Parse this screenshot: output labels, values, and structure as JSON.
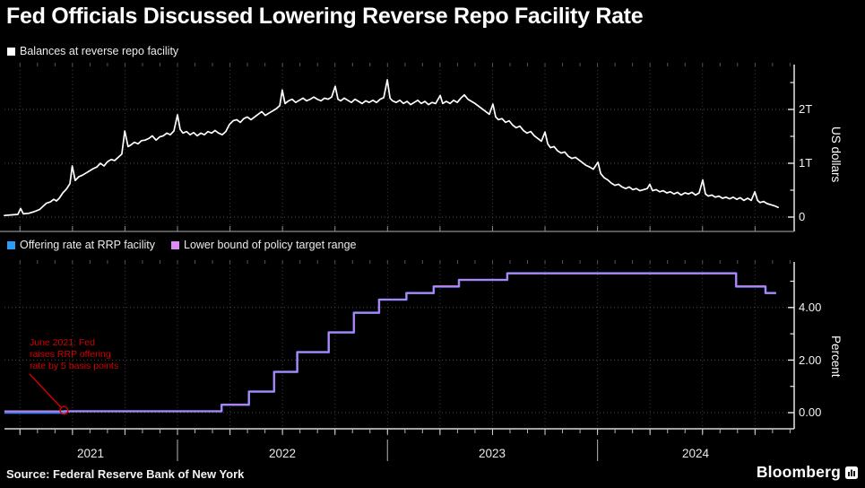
{
  "title": "Fed Officials Discussed Lowering Reverse Repo Facility Rate",
  "panels": {
    "balances": {
      "legend": [
        {
          "label": "Balances at reverse repo facility",
          "color": "#ffffff"
        }
      ],
      "y_axis": {
        "title": "US dollars",
        "tick_labels": [
          "0",
          "1T",
          "2T"
        ]
      }
    },
    "rates": {
      "legend": [
        {
          "label": "Offering rate at RRP facility",
          "color": "#2D9CF4"
        },
        {
          "label": "Lower bound of policy target range",
          "color": "#DC8BF2"
        }
      ],
      "y_axis": {
        "title": "Percent",
        "tick_labels": [
          "0.00",
          "2.00",
          "4.00"
        ]
      },
      "annotation": {
        "lines": [
          "June 2021: Fed",
          "raises RRP offering",
          "rate by 5 basis points"
        ],
        "color": "#d40000"
      }
    }
  },
  "x_axis": {
    "years": [
      "2021",
      "2022",
      "2023",
      "2024"
    ]
  },
  "source": "Source: Federal Reserve Bank of New York",
  "brand": "Bloomberg",
  "chart_data": [
    {
      "type": "line",
      "title": "Balances at reverse repo facility",
      "ylabel": "US dollars",
      "units": "USD trillions",
      "ylim": [
        0,
        2.9
      ],
      "yticks_major": [
        0,
        1,
        2
      ],
      "ytick_labels": [
        "0",
        "1T",
        "2T"
      ],
      "yticks_minor": [
        0.5,
        1.5,
        2.5
      ],
      "x_units": "decimal year",
      "xlim": [
        2021.17,
        2024.93
      ],
      "grid": "dashed quarterly vertical, major horizontal",
      "line_color": "#ffffff",
      "points": [
        [
          2021.176,
          0.03
        ],
        [
          2021.206,
          0.04
        ],
        [
          2021.24,
          0.05
        ],
        [
          2021.253,
          0.16
        ],
        [
          2021.266,
          0.06
        ],
        [
          2021.291,
          0.07
        ],
        [
          2021.317,
          0.1
        ],
        [
          2021.343,
          0.14
        ],
        [
          2021.36,
          0.2
        ],
        [
          2021.377,
          0.26
        ],
        [
          2021.394,
          0.28
        ],
        [
          2021.411,
          0.33
        ],
        [
          2021.424,
          0.3
        ],
        [
          2021.437,
          0.35
        ],
        [
          2021.454,
          0.45
        ],
        [
          2021.471,
          0.52
        ],
        [
          2021.488,
          0.62
        ],
        [
          2021.499,
          0.95
        ],
        [
          2021.513,
          0.68
        ],
        [
          2021.53,
          0.75
        ],
        [
          2021.548,
          0.78
        ],
        [
          2021.565,
          0.82
        ],
        [
          2021.582,
          0.86
        ],
        [
          2021.599,
          0.9
        ],
        [
          2021.616,
          0.93
        ],
        [
          2021.633,
          1.0
        ],
        [
          2021.65,
          0.95
        ],
        [
          2021.667,
          1.03
        ],
        [
          2021.684,
          1.07
        ],
        [
          2021.701,
          1.05
        ],
        [
          2021.718,
          1.11
        ],
        [
          2021.735,
          1.17
        ],
        [
          2021.749,
          1.6
        ],
        [
          2021.765,
          1.31
        ],
        [
          2021.778,
          1.34
        ],
        [
          2021.795,
          1.39
        ],
        [
          2021.812,
          1.36
        ],
        [
          2021.829,
          1.42
        ],
        [
          2021.846,
          1.43
        ],
        [
          2021.863,
          1.46
        ],
        [
          2021.88,
          1.51
        ],
        [
          2021.898,
          1.43
        ],
        [
          2021.915,
          1.49
        ],
        [
          2021.932,
          1.51
        ],
        [
          2021.949,
          1.56
        ],
        [
          2021.966,
          1.53
        ],
        [
          2021.983,
          1.6
        ],
        [
          2022.0,
          1.9
        ],
        [
          2022.013,
          1.63
        ],
        [
          2022.026,
          1.56
        ],
        [
          2022.043,
          1.59
        ],
        [
          2022.06,
          1.53
        ],
        [
          2022.077,
          1.57
        ],
        [
          2022.094,
          1.51
        ],
        [
          2022.111,
          1.56
        ],
        [
          2022.128,
          1.53
        ],
        [
          2022.145,
          1.59
        ],
        [
          2022.162,
          1.56
        ],
        [
          2022.179,
          1.61
        ],
        [
          2022.196,
          1.56
        ],
        [
          2022.213,
          1.53
        ],
        [
          2022.23,
          1.59
        ],
        [
          2022.247,
          1.72
        ],
        [
          2022.265,
          1.79
        ],
        [
          2022.282,
          1.81
        ],
        [
          2022.299,
          1.76
        ],
        [
          2022.316,
          1.83
        ],
        [
          2022.333,
          1.86
        ],
        [
          2022.35,
          1.81
        ],
        [
          2022.367,
          1.86
        ],
        [
          2022.384,
          1.91
        ],
        [
          2022.401,
          1.96
        ],
        [
          2022.418,
          1.89
        ],
        [
          2022.435,
          1.93
        ],
        [
          2022.452,
          1.97
        ],
        [
          2022.469,
          2.01
        ],
        [
          2022.487,
          2.07
        ],
        [
          2022.499,
          2.36
        ],
        [
          2022.512,
          2.11
        ],
        [
          2022.529,
          2.16
        ],
        [
          2022.546,
          2.19
        ],
        [
          2022.563,
          2.13
        ],
        [
          2022.58,
          2.17
        ],
        [
          2022.598,
          2.21
        ],
        [
          2022.615,
          2.16
        ],
        [
          2022.632,
          2.19
        ],
        [
          2022.649,
          2.23
        ],
        [
          2022.666,
          2.19
        ],
        [
          2022.683,
          2.16
        ],
        [
          2022.7,
          2.21
        ],
        [
          2022.717,
          2.19
        ],
        [
          2022.734,
          2.23
        ],
        [
          2022.751,
          2.43
        ],
        [
          2022.764,
          2.19
        ],
        [
          2022.777,
          2.16
        ],
        [
          2022.794,
          2.21
        ],
        [
          2022.811,
          2.17
        ],
        [
          2022.828,
          2.13
        ],
        [
          2022.845,
          2.19
        ],
        [
          2022.862,
          2.15
        ],
        [
          2022.879,
          2.11
        ],
        [
          2022.896,
          2.16
        ],
        [
          2022.913,
          2.13
        ],
        [
          2022.93,
          2.17
        ],
        [
          2022.948,
          2.13
        ],
        [
          2022.965,
          2.19
        ],
        [
          2022.982,
          2.22
        ],
        [
          2022.999,
          2.55
        ],
        [
          2023.012,
          2.21
        ],
        [
          2023.024,
          2.16
        ],
        [
          2023.041,
          2.13
        ],
        [
          2023.059,
          2.17
        ],
        [
          2023.076,
          2.11
        ],
        [
          2023.093,
          2.15
        ],
        [
          2023.11,
          2.09
        ],
        [
          2023.127,
          2.13
        ],
        [
          2023.144,
          2.17
        ],
        [
          2023.161,
          2.11
        ],
        [
          2023.178,
          2.15
        ],
        [
          2023.195,
          2.09
        ],
        [
          2023.212,
          2.13
        ],
        [
          2023.229,
          2.11
        ],
        [
          2023.251,
          2.26
        ],
        [
          2023.263,
          2.11
        ],
        [
          2023.28,
          2.15
        ],
        [
          2023.298,
          2.11
        ],
        [
          2023.315,
          2.17
        ],
        [
          2023.332,
          2.13
        ],
        [
          2023.349,
          2.21
        ],
        [
          2023.366,
          2.27
        ],
        [
          2023.383,
          2.19
        ],
        [
          2023.4,
          2.15
        ],
        [
          2023.417,
          2.11
        ],
        [
          2023.434,
          2.06
        ],
        [
          2023.451,
          2.01
        ],
        [
          2023.468,
          1.96
        ],
        [
          2023.485,
          1.91
        ],
        [
          2023.502,
          2.1
        ],
        [
          2023.515,
          1.86
        ],
        [
          2023.528,
          1.81
        ],
        [
          2023.545,
          1.83
        ],
        [
          2023.562,
          1.76
        ],
        [
          2023.579,
          1.79
        ],
        [
          2023.596,
          1.71
        ],
        [
          2023.613,
          1.66
        ],
        [
          2023.63,
          1.69
        ],
        [
          2023.647,
          1.61
        ],
        [
          2023.664,
          1.56
        ],
        [
          2023.682,
          1.59
        ],
        [
          2023.699,
          1.51
        ],
        [
          2023.716,
          1.46
        ],
        [
          2023.733,
          1.41
        ],
        [
          2023.75,
          1.58
        ],
        [
          2023.763,
          1.36
        ],
        [
          2023.776,
          1.29
        ],
        [
          2023.793,
          1.31
        ],
        [
          2023.81,
          1.23
        ],
        [
          2023.827,
          1.19
        ],
        [
          2023.844,
          1.21
        ],
        [
          2023.861,
          1.13
        ],
        [
          2023.878,
          1.09
        ],
        [
          2023.895,
          1.11
        ],
        [
          2023.912,
          1.06
        ],
        [
          2023.929,
          1.01
        ],
        [
          2023.946,
          0.96
        ],
        [
          2023.963,
          0.93
        ],
        [
          2023.98,
          0.89
        ],
        [
          2024.002,
          1.02
        ],
        [
          2024.015,
          0.81
        ],
        [
          2024.032,
          0.73
        ],
        [
          2024.049,
          0.69
        ],
        [
          2024.066,
          0.63
        ],
        [
          2024.083,
          0.59
        ],
        [
          2024.1,
          0.61
        ],
        [
          2024.117,
          0.56
        ],
        [
          2024.134,
          0.53
        ],
        [
          2024.151,
          0.56
        ],
        [
          2024.168,
          0.51
        ],
        [
          2024.185,
          0.53
        ],
        [
          2024.202,
          0.49
        ],
        [
          2024.219,
          0.51
        ],
        [
          2024.237,
          0.53
        ],
        [
          2024.249,
          0.61
        ],
        [
          2024.262,
          0.49
        ],
        [
          2024.279,
          0.51
        ],
        [
          2024.296,
          0.47
        ],
        [
          2024.313,
          0.49
        ],
        [
          2024.33,
          0.45
        ],
        [
          2024.347,
          0.47
        ],
        [
          2024.364,
          0.43
        ],
        [
          2024.381,
          0.46
        ],
        [
          2024.398,
          0.41
        ],
        [
          2024.416,
          0.45
        ],
        [
          2024.433,
          0.43
        ],
        [
          2024.45,
          0.46
        ],
        [
          2024.467,
          0.41
        ],
        [
          2024.484,
          0.45
        ],
        [
          2024.501,
          0.69
        ],
        [
          2024.514,
          0.43
        ],
        [
          2024.527,
          0.39
        ],
        [
          2024.544,
          0.41
        ],
        [
          2024.561,
          0.37
        ],
        [
          2024.578,
          0.39
        ],
        [
          2024.595,
          0.35
        ],
        [
          2024.612,
          0.37
        ],
        [
          2024.629,
          0.34
        ],
        [
          2024.646,
          0.37
        ],
        [
          2024.663,
          0.33
        ],
        [
          2024.68,
          0.36
        ],
        [
          2024.697,
          0.31
        ],
        [
          2024.715,
          0.35
        ],
        [
          2024.732,
          0.31
        ],
        [
          2024.749,
          0.47
        ],
        [
          2024.762,
          0.31
        ],
        [
          2024.774,
          0.27
        ],
        [
          2024.791,
          0.29
        ],
        [
          2024.808,
          0.25
        ],
        [
          2024.825,
          0.23
        ],
        [
          2024.842,
          0.21
        ],
        [
          2024.86,
          0.18
        ]
      ]
    },
    {
      "type": "step-line",
      "title": "Policy rates",
      "ylabel": "Percent",
      "units": "percent",
      "ylim": [
        0,
        5.8
      ],
      "yticks_major": [
        0,
        2,
        4
      ],
      "ytick_labels": [
        "0.00",
        "2.00",
        "4.00"
      ],
      "yticks_minor": [
        1,
        3,
        5
      ],
      "x_units": "decimal year",
      "xlim": [
        2021.17,
        2024.93
      ],
      "x_end": 2024.85,
      "series": [
        {
          "name": "Offering rate at RRP facility",
          "color": "#3F7DF0",
          "steps": [
            [
              2021.176,
              0.0
            ],
            [
              2021.46,
              0.05
            ],
            [
              2022.21,
              0.3
            ],
            [
              2022.34,
              0.8
            ],
            [
              2022.46,
              1.55
            ],
            [
              2022.57,
              2.3
            ],
            [
              2022.72,
              3.05
            ],
            [
              2022.84,
              3.8
            ],
            [
              2022.96,
              4.3
            ],
            [
              2023.09,
              4.55
            ],
            [
              2023.22,
              4.8
            ],
            [
              2023.34,
              5.05
            ],
            [
              2023.57,
              5.3
            ],
            [
              2024.66,
              4.8
            ],
            [
              2024.8,
              4.55
            ]
          ]
        },
        {
          "name": "Lower bound of policy target range",
          "color": "#C083EA",
          "steps": [
            [
              2021.176,
              0.0
            ],
            [
              2022.21,
              0.25
            ],
            [
              2022.34,
              0.75
            ],
            [
              2022.46,
              1.5
            ],
            [
              2022.57,
              2.25
            ],
            [
              2022.72,
              3.0
            ],
            [
              2022.84,
              3.75
            ],
            [
              2022.96,
              4.25
            ],
            [
              2023.09,
              4.5
            ],
            [
              2023.22,
              4.75
            ],
            [
              2023.34,
              5.0
            ],
            [
              2023.57,
              5.25
            ],
            [
              2024.66,
              4.75
            ],
            [
              2024.8,
              4.5
            ]
          ]
        }
      ],
      "annotation": {
        "text": "June 2021: Fed raises RRP offering rate by 5 basis points",
        "target": [
          2021.46,
          0.05
        ]
      }
    }
  ]
}
